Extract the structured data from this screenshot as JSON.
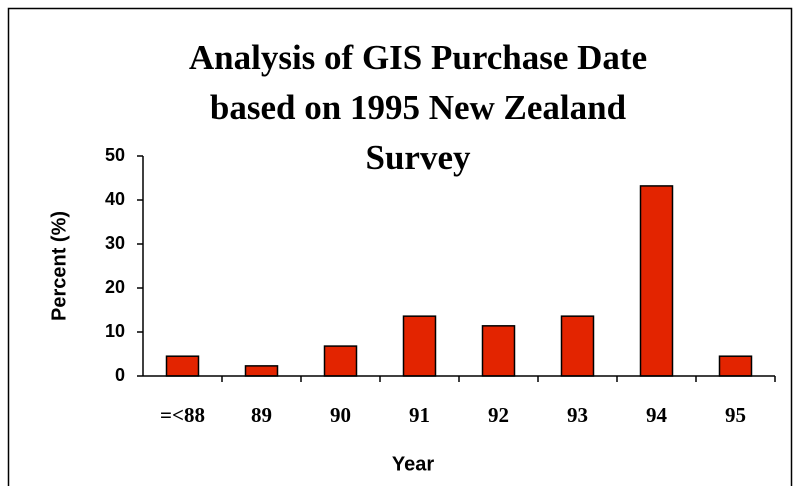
{
  "chart_data": {
    "type": "bar",
    "title": "Analysis of GIS Purchase Date based on 1995 New Zealand Survey",
    "x_label": "Year",
    "y_label": "Percent (%)",
    "categories": [
      "=<88",
      "89",
      "90",
      "91",
      "92",
      "93",
      "94",
      "95"
    ],
    "values": [
      4.5,
      2.3,
      6.8,
      13.6,
      11.4,
      13.6,
      43.2,
      4.5
    ],
    "color": "#e32400",
    "ylim": [
      0,
      50
    ],
    "yticks": [
      0,
      10,
      20,
      30,
      40,
      50
    ],
    "grid": false
  }
}
